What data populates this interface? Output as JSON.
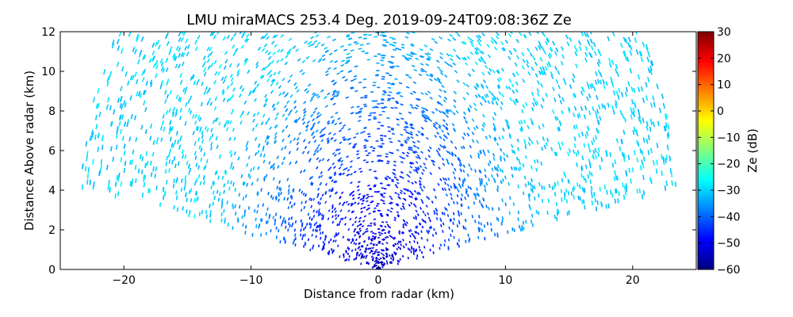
{
  "chart_data": {
    "type": "heatmap",
    "title": "LMU miraMACS 253.4 Deg. 2019-09-24T09:08:36Z  Ze",
    "xlabel": "Distance from radar (km)",
    "ylabel": "Distance Above radar  (km)",
    "xlim": [
      -25,
      25
    ],
    "ylim": [
      0,
      12
    ],
    "x_ticks": [
      -20,
      -10,
      0,
      10,
      20
    ],
    "x_tick_labels": [
      "−20",
      "−10",
      "0",
      "10",
      "20"
    ],
    "y_ticks": [
      0,
      2,
      4,
      6,
      8,
      10,
      12
    ],
    "y_tick_labels": [
      "0",
      "2",
      "4",
      "6",
      "8",
      "10",
      "12"
    ],
    "grid": false,
    "scan": {
      "max_range_km": 24,
      "elevation_min_deg": 10,
      "elevation_max_deg": 170,
      "near_radar_Ze_dB": -55,
      "far_range_Ze_dB": -30
    },
    "colorbar": {
      "label": "Ze (dB)",
      "range": [
        -60,
        30
      ],
      "ticks": [
        30,
        20,
        10,
        0,
        -10,
        -20,
        -30,
        -40,
        -50,
        -60
      ],
      "tick_labels": [
        "30",
        "20",
        "10",
        "0",
        "−10",
        "−20",
        "−30",
        "−40",
        "−50",
        "−60"
      ],
      "colormap": "jet",
      "colors": [
        "#000080",
        "#0000ff",
        "#0080ff",
        "#00ffff",
        "#80ff80",
        "#ffff00",
        "#ff8000",
        "#ff0000",
        "#800000"
      ]
    }
  }
}
